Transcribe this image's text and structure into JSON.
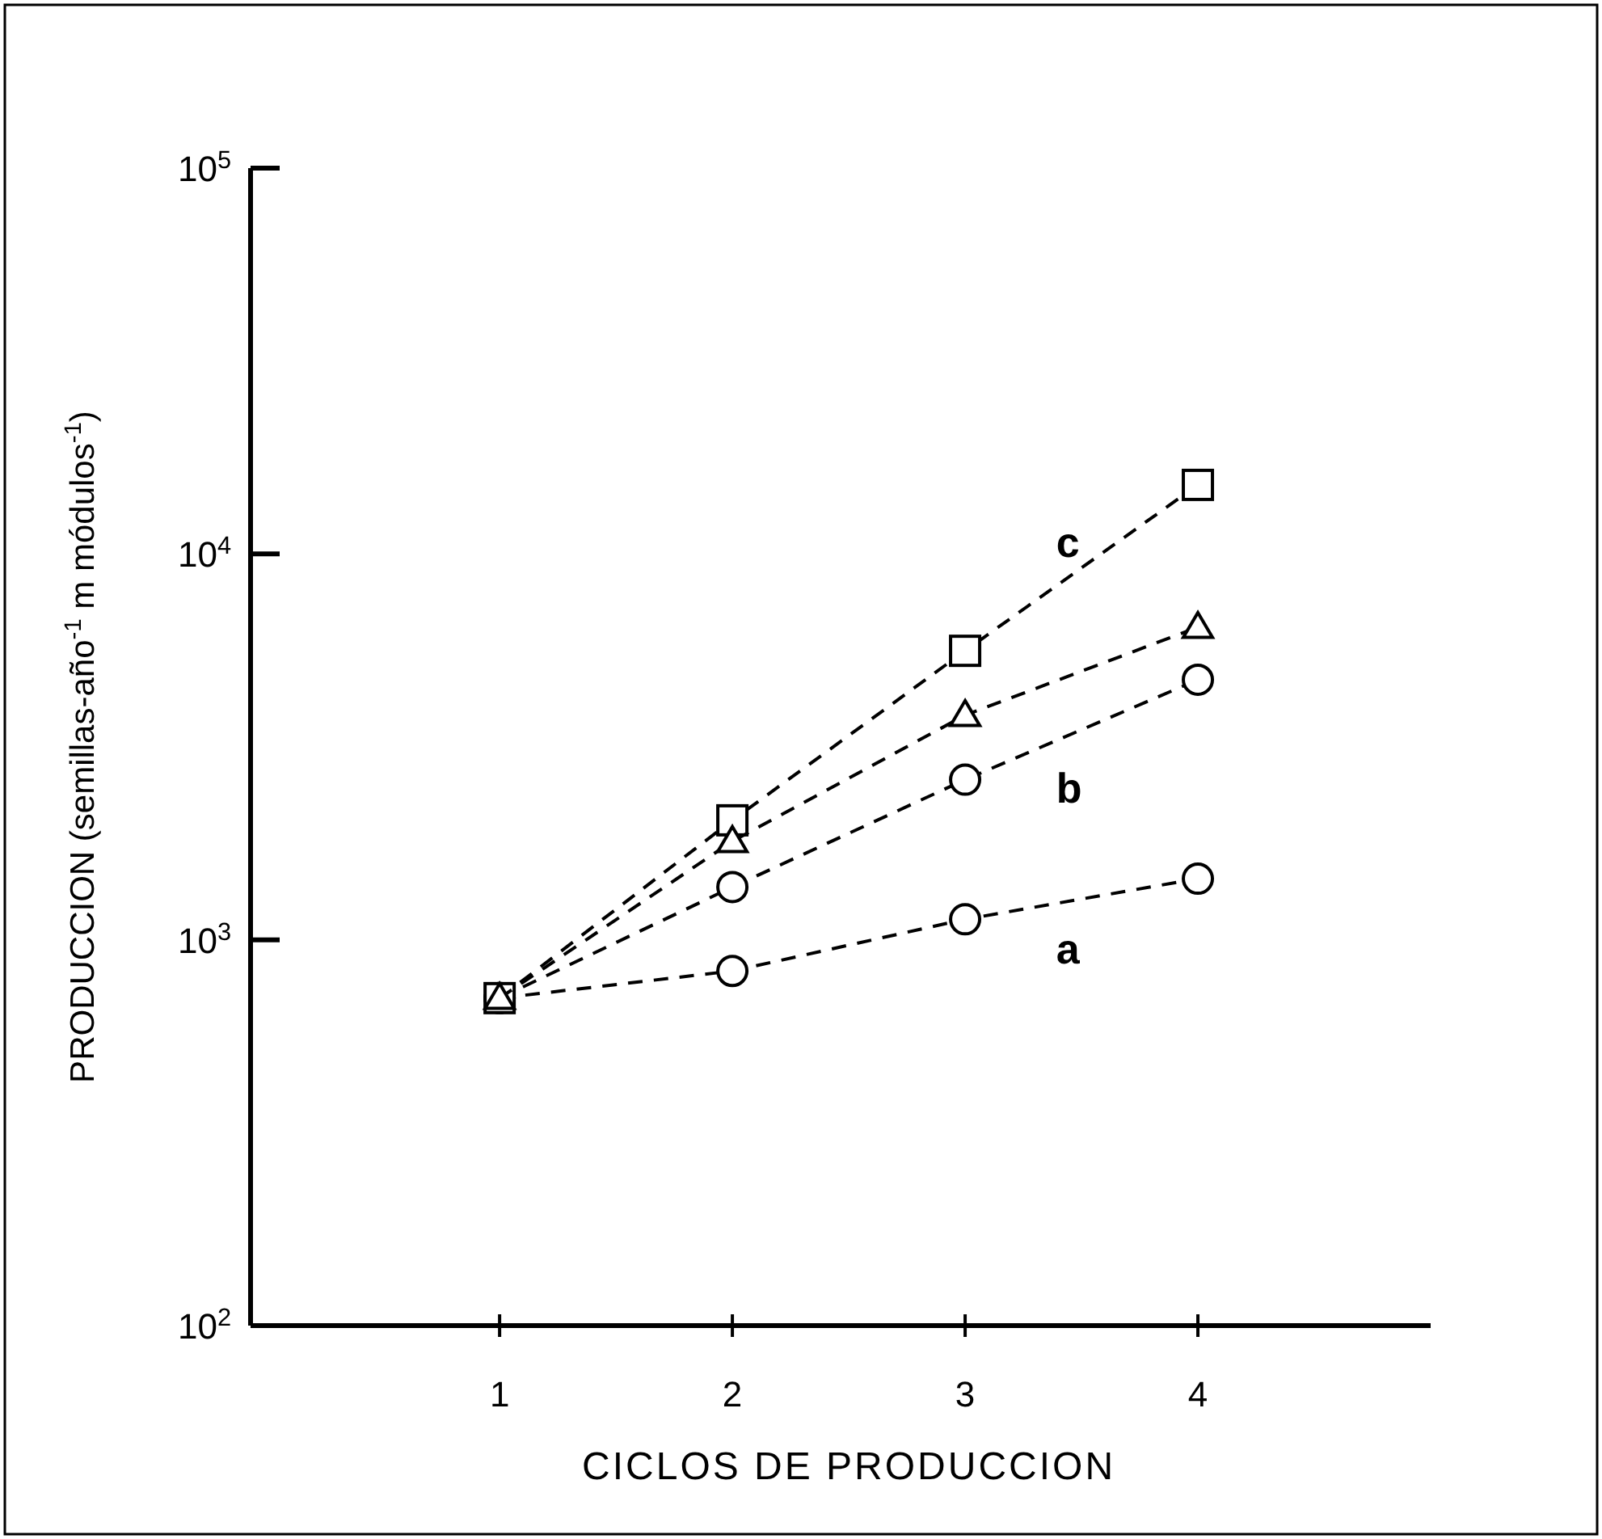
{
  "chart_data": {
    "type": "line",
    "xlabel": "CICLOS DE PRODUCCION",
    "ylabel": "PRODUCCION (semillas-año$^{-1}$   m módulos$^{-1}$)",
    "x": [
      1,
      2,
      3,
      4
    ],
    "xlim": [
      -0.07,
      5
    ],
    "xticks": [
      1,
      2,
      3,
      4
    ],
    "ylim": [
      100,
      100000
    ],
    "log": true,
    "yticks": [
      {
        "value": 100,
        "label": "10$^{2}$"
      },
      {
        "value": 1000,
        "label": "10$^{3}$"
      },
      {
        "value": 10000,
        "label": "10$^{4}$"
      },
      {
        "value": 100000,
        "label": "10$^{5}$"
      }
    ],
    "grid": false,
    "line_style": "dashed",
    "series": [
      {
        "name": "a",
        "color": "#000000",
        "marker": "circle",
        "values": [
          706,
          830,
          1130,
          1440
        ]
      },
      {
        "name": "b",
        "color": "#000000",
        "marker": "circle",
        "values": [
          706,
          1370,
          2600,
          4720
        ]
      },
      {
        "name": "c",
        "color": "#000000",
        "marker": "square",
        "values": [
          706,
          2040,
          5610,
          15100
        ]
      },
      {
        "color": "#000000",
        "marker": "triangle",
        "values": [
          706,
          1800,
          3820,
          6460
        ]
      }
    ]
  }
}
